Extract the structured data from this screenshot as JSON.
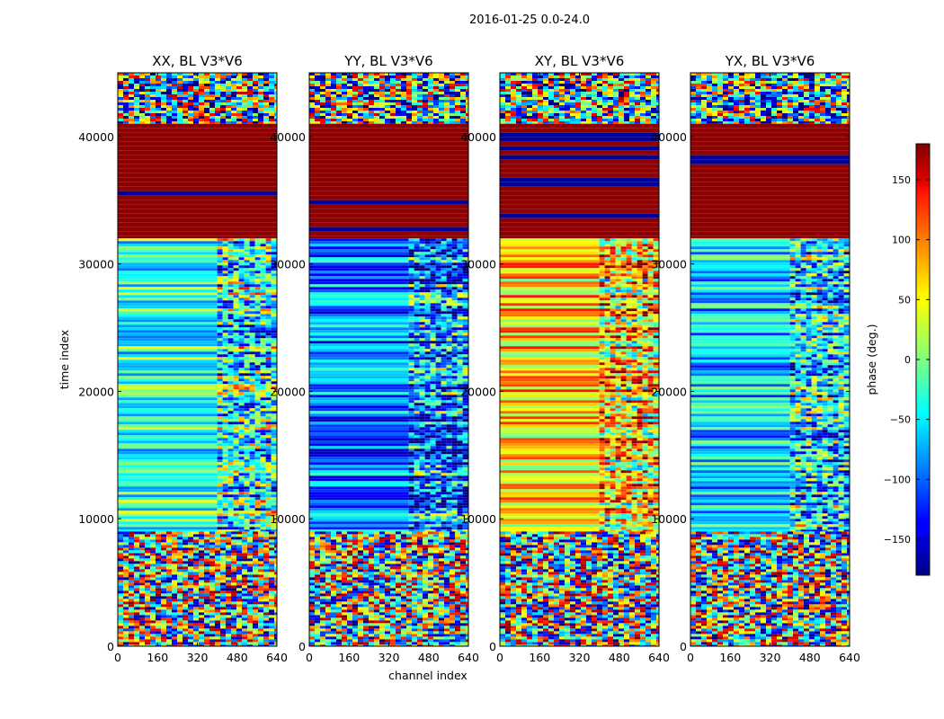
{
  "figure": {
    "suptitle": "2016-01-25 0.0-24.0",
    "xlabel": "channel index",
    "ylabel": "time index"
  },
  "colorbar": {
    "label": "phase (deg.)",
    "colormap": "jet",
    "range": [
      -180,
      180
    ],
    "ticks": [
      150,
      100,
      50,
      0,
      -50,
      -100,
      -150
    ],
    "tick_labels": [
      "150",
      "100",
      "50",
      "0",
      "−50",
      "−100",
      "−150"
    ]
  },
  "chart_data": [
    {
      "type": "heatmap",
      "title": "XX, BL V3*V6",
      "x_ticks": [
        "0",
        "160",
        "320",
        "480",
        "640"
      ],
      "y_ticks": [
        "0",
        "10000",
        "20000",
        "30000",
        "40000"
      ],
      "xlim": [
        0,
        640
      ],
      "ylim": [
        0,
        45000
      ],
      "value_units": "deg",
      "vmin": -180,
      "vmax": 180,
      "bands": [
        {
          "t": [
            41000,
            45000
          ],
          "pattern": "noise",
          "base": -20
        },
        {
          "t": [
            32000,
            41000
          ],
          "pattern": "saturated",
          "base": 180
        },
        {
          "t": [
            9000,
            32000
          ],
          "pattern": "stripes",
          "base": -30
        },
        {
          "t": [
            0,
            9000
          ],
          "pattern": "noise",
          "base": 0
        }
      ]
    },
    {
      "type": "heatmap",
      "title": "YY, BL V3*V6",
      "x_ticks": [
        "0",
        "160",
        "320",
        "480",
        "640"
      ],
      "y_ticks": [
        "0",
        "10000",
        "20000",
        "30000",
        "40000"
      ],
      "xlim": [
        0,
        640
      ],
      "ylim": [
        0,
        45000
      ],
      "value_units": "deg",
      "vmin": -180,
      "vmax": 180,
      "bands": [
        {
          "t": [
            41000,
            45000
          ],
          "pattern": "noise",
          "base": -20
        },
        {
          "t": [
            32000,
            41000
          ],
          "pattern": "saturated",
          "base": 180
        },
        {
          "t": [
            9000,
            32000
          ],
          "pattern": "stripes",
          "base": -90
        },
        {
          "t": [
            0,
            9000
          ],
          "pattern": "noise",
          "base": 0
        }
      ]
    },
    {
      "type": "heatmap",
      "title": "XY, BL V3*V6",
      "x_ticks": [
        "0",
        "160",
        "320",
        "480",
        "640"
      ],
      "y_ticks": [
        "0",
        "10000",
        "20000",
        "30000",
        "40000"
      ],
      "xlim": [
        0,
        640
      ],
      "ylim": [
        0,
        45000
      ],
      "value_units": "deg",
      "vmin": -180,
      "vmax": 180,
      "bands": [
        {
          "t": [
            41000,
            45000
          ],
          "pattern": "noise",
          "base": -20
        },
        {
          "t": [
            32000,
            41000
          ],
          "pattern": "saturated",
          "base": 180
        },
        {
          "t": [
            9000,
            32000
          ],
          "pattern": "stripes",
          "base": 60
        },
        {
          "t": [
            0,
            9000
          ],
          "pattern": "noise",
          "base": 0
        }
      ]
    },
    {
      "type": "heatmap",
      "title": "YX, BL V3*V6",
      "x_ticks": [
        "0",
        "160",
        "320",
        "480",
        "640"
      ],
      "y_ticks": [
        "0",
        "10000",
        "20000",
        "30000",
        "40000"
      ],
      "xlim": [
        0,
        640
      ],
      "ylim": [
        0,
        45000
      ],
      "value_units": "deg",
      "vmin": -180,
      "vmax": 180,
      "bands": [
        {
          "t": [
            41000,
            45000
          ],
          "pattern": "noise",
          "base": -20
        },
        {
          "t": [
            32000,
            41000
          ],
          "pattern": "saturated",
          "base": 180
        },
        {
          "t": [
            9000,
            32000
          ],
          "pattern": "stripes",
          "base": -60
        },
        {
          "t": [
            0,
            9000
          ],
          "pattern": "noise",
          "base": 0
        }
      ]
    }
  ]
}
